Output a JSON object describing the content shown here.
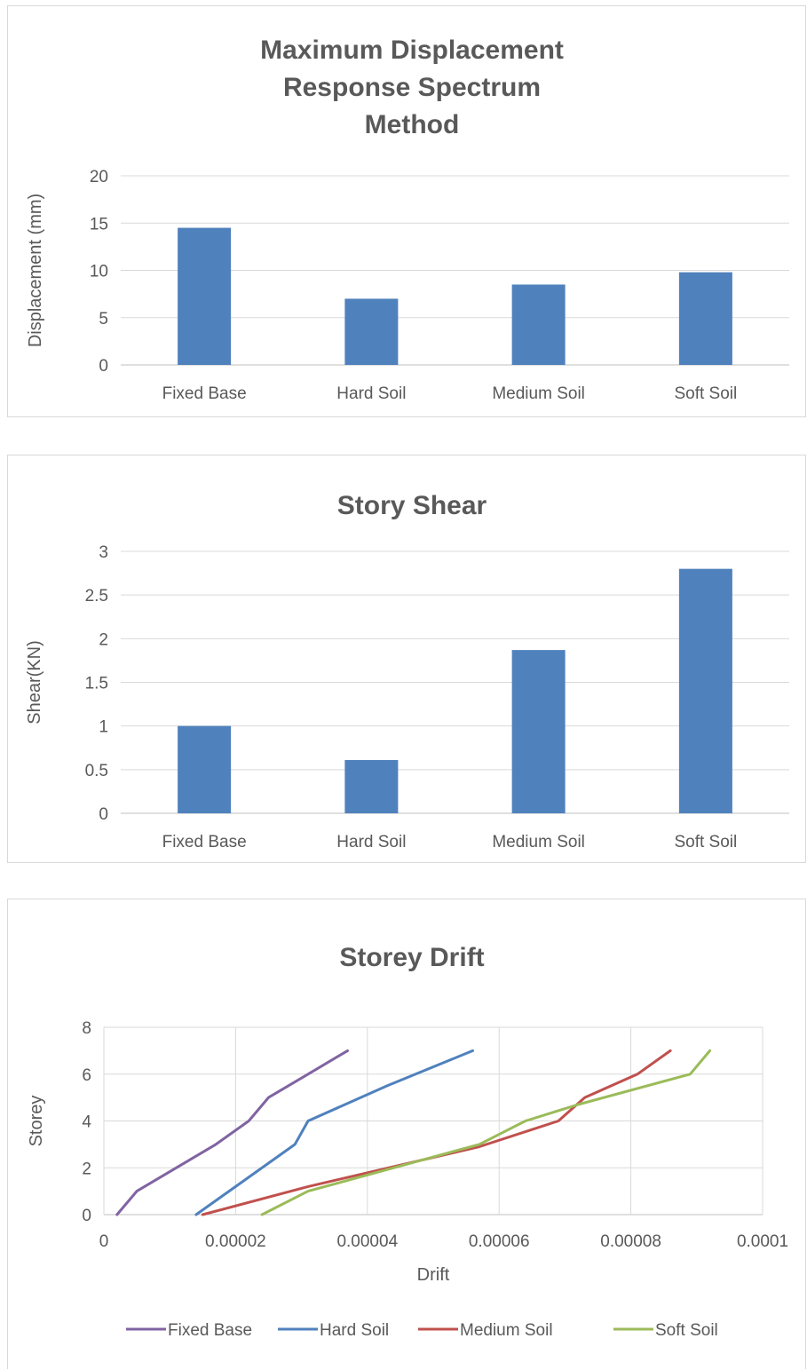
{
  "chart_data": [
    {
      "type": "bar",
      "title": [
        "Maximum Displacement",
        "Response Spectrum",
        "Method"
      ],
      "ylabel": "Displacement (mm)",
      "xlabel": "",
      "categories": [
        "Fixed Base",
        "Hard Soil",
        "Medium Soil",
        "Soft Soil"
      ],
      "values": [
        14.5,
        7.0,
        8.5,
        9.8
      ],
      "ylim": [
        0,
        20
      ],
      "yticks": [
        "0",
        "5",
        "10",
        "15",
        "20"
      ],
      "color": "#4f81bd",
      "grid": true
    },
    {
      "type": "bar",
      "title": [
        "Story Shear"
      ],
      "ylabel": "Shear(KN)",
      "xlabel": "",
      "categories": [
        "Fixed Base",
        "Hard Soil",
        "Medium Soil",
        "Soft Soil"
      ],
      "values": [
        1.0,
        0.61,
        1.87,
        2.8
      ],
      "ylim": [
        0,
        3
      ],
      "yticks": [
        "0",
        "0.5",
        "1",
        "1.5",
        "2",
        "2.5",
        "3"
      ],
      "color": "#4f81bd",
      "grid": true
    },
    {
      "type": "line",
      "title": [
        "Storey Drift"
      ],
      "xlabel": "Drift",
      "ylabel": "Storey",
      "xlim": [
        0,
        0.0001
      ],
      "ylim": [
        0,
        8
      ],
      "xticks": [
        "0",
        "0.00002",
        "0.00004",
        "0.00006",
        "0.00008",
        "0.0001"
      ],
      "yticks": [
        "0",
        "2",
        "4",
        "6",
        "8"
      ],
      "grid": true,
      "legend": "bottom",
      "series": [
        {
          "name": "Fixed Base",
          "color": "#8064a2",
          "points": [
            [
              2e-06,
              0
            ],
            [
              5e-06,
              1
            ],
            [
              1.7e-05,
              3
            ],
            [
              2.2e-05,
              4
            ],
            [
              2.5e-05,
              5
            ],
            [
              3.1e-05,
              6
            ],
            [
              3.7e-05,
              7
            ]
          ]
        },
        {
          "name": "Hard Soil",
          "color": "#4f81bd",
          "points": [
            [
              1.4e-05,
              0
            ],
            [
              2.9e-05,
              3
            ],
            [
              3.1e-05,
              4
            ],
            [
              4.3e-05,
              5.5
            ],
            [
              5.6e-05,
              7
            ]
          ]
        },
        {
          "name": "Medium Soil",
          "color": "#c0504d",
          "points": [
            [
              1.5e-05,
              0
            ],
            [
              3.1e-05,
              1.2
            ],
            [
              5.7e-05,
              2.9
            ],
            [
              6.9e-05,
              4
            ],
            [
              7.3e-05,
              5
            ],
            [
              8.1e-05,
              6
            ],
            [
              8.6e-05,
              7
            ]
          ]
        },
        {
          "name": "Soft Soil",
          "color": "#9bbb59",
          "points": [
            [
              2.4e-05,
              0
            ],
            [
              3.1e-05,
              1
            ],
            [
              5.7e-05,
              3
            ],
            [
              6.4e-05,
              4
            ],
            [
              7.2e-05,
              4.7
            ],
            [
              8.9e-05,
              6
            ],
            [
              9.2e-05,
              7
            ]
          ]
        }
      ]
    }
  ]
}
